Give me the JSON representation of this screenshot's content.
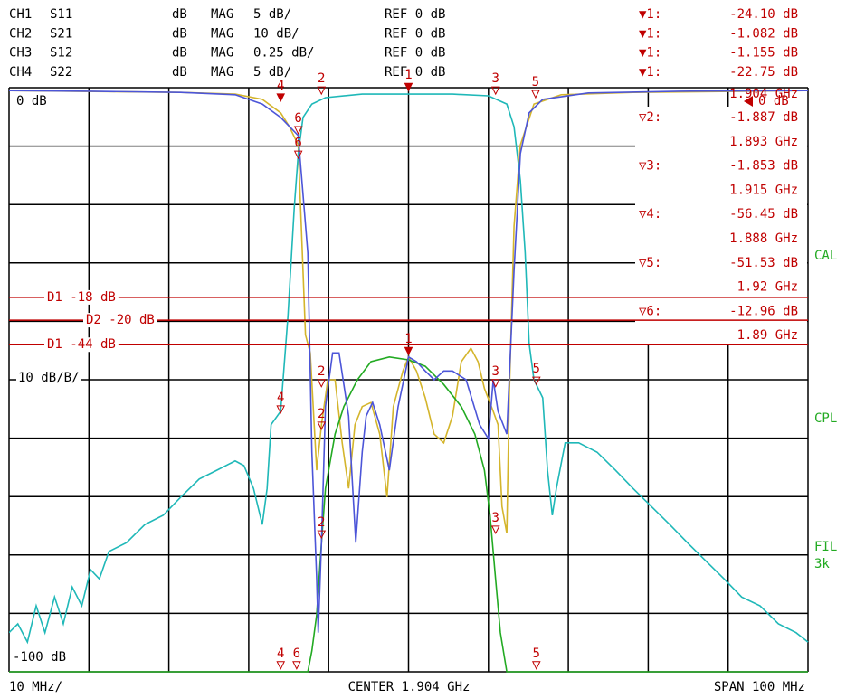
{
  "chart_data": {
    "type": "line",
    "xlim": [
      0,
      10
    ],
    "ylim": [
      0,
      10
    ],
    "grid": {
      "x_divisions": 10,
      "y_divisions": 10
    },
    "series": [
      {
        "channel": "CH1",
        "name": "S11",
        "format": "dB",
        "mode": "MAG",
        "scale": "5 dB/",
        "reference": "REF 0 dB",
        "color": "#d4b52c",
        "x": [
          0,
          2.15,
          2.83,
          3.17,
          3.4,
          3.51,
          3.62,
          3.71,
          3.77,
          3.85,
          3.91,
          3.99,
          4.08,
          4.17,
          4.25,
          4.33,
          4.42,
          4.53,
          4.64,
          4.73,
          4.81,
          4.93,
          5.0,
          5.1,
          5.21,
          5.32,
          5.44,
          5.55,
          5.66,
          5.78,
          5.87,
          5.95,
          6.06,
          6.12,
          6.17,
          6.23,
          6.26,
          6.32,
          6.4,
          6.57,
          6.91,
          7.81,
          10
        ],
        "values": [
          9.95,
          9.92,
          9.89,
          9.8,
          9.57,
          9.33,
          9.02,
          5.77,
          5.46,
          3.45,
          4.23,
          5.0,
          5.0,
          3.92,
          3.14,
          4.23,
          4.54,
          4.61,
          4.07,
          2.99,
          4.54,
          5.15,
          5.39,
          5.15,
          4.69,
          4.07,
          3.92,
          4.38,
          5.31,
          5.54,
          5.31,
          4.85,
          4.46,
          4.23,
          2.83,
          2.37,
          4.69,
          7.63,
          9.02,
          9.72,
          9.88,
          9.92,
          9.95
        ]
      },
      {
        "channel": "CH2",
        "name": "S21",
        "format": "dB",
        "mode": "MAG",
        "scale": "10 dB/",
        "reference": "REF 0 dB",
        "color": "#1fb8b8",
        "x": [
          0,
          0.11,
          0.23,
          0.34,
          0.45,
          0.57,
          0.68,
          0.79,
          0.91,
          1.02,
          1.13,
          1.25,
          1.47,
          1.7,
          1.93,
          2.15,
          2.38,
          2.6,
          2.83,
          2.94,
          3.06,
          3.17,
          3.23,
          3.28,
          3.4,
          3.49,
          3.57,
          3.62,
          3.68,
          3.79,
          3.96,
          4.42,
          5.0,
          5.55,
          6.0,
          6.23,
          6.32,
          6.4,
          6.46,
          6.51,
          6.57,
          6.68,
          6.74,
          6.8,
          6.85,
          6.96,
          7.13,
          7.36,
          7.59,
          7.81,
          8.04,
          8.27,
          8.49,
          8.72,
          8.95,
          9.17,
          9.4,
          9.63,
          9.85,
          10
        ],
        "values": [
          0.67,
          0.82,
          0.51,
          1.13,
          0.67,
          1.28,
          0.82,
          1.45,
          1.13,
          1.75,
          1.59,
          2.06,
          2.21,
          2.52,
          2.68,
          2.99,
          3.3,
          3.45,
          3.61,
          3.53,
          3.14,
          2.52,
          3.14,
          4.23,
          4.46,
          6.08,
          7.94,
          8.87,
          9.49,
          9.72,
          9.83,
          9.89,
          9.89,
          9.89,
          9.86,
          9.72,
          9.33,
          8.41,
          7.17,
          5.62,
          5.0,
          4.69,
          3.45,
          2.68,
          3.14,
          3.92,
          3.92,
          3.76,
          3.45,
          3.14,
          2.83,
          2.52,
          2.21,
          1.9,
          1.59,
          1.28,
          1.13,
          0.82,
          0.67,
          0.51
        ]
      },
      {
        "channel": "CH3",
        "name": "S12",
        "format": "dB",
        "mode": "MAG",
        "scale": "0.25 dB/",
        "reference": "REF 0 dB",
        "color": "#22aa22",
        "x": [
          0,
          3.74,
          3.79,
          3.85,
          3.91,
          3.96,
          4.08,
          4.19,
          4.36,
          4.53,
          4.76,
          5.0,
          5.21,
          5.44,
          5.66,
          5.83,
          5.95,
          6.02,
          6.09,
          6.15,
          6.23,
          10
        ],
        "values": [
          0,
          0,
          0.36,
          0.98,
          2.21,
          3.14,
          4.07,
          4.54,
          5.0,
          5.31,
          5.39,
          5.34,
          5.23,
          4.92,
          4.54,
          4.07,
          3.45,
          2.68,
          1.59,
          0.67,
          0,
          0
        ]
      },
      {
        "channel": "CH4",
        "name": "S22",
        "format": "dB",
        "mode": "MAG",
        "scale": "5 dB/",
        "reference": "REF 0 dB",
        "color": "#4c55d8",
        "x": [
          0,
          1.02,
          2.15,
          2.83,
          3.17,
          3.4,
          3.62,
          3.74,
          3.79,
          3.85,
          3.87,
          3.91,
          3.96,
          4.05,
          4.13,
          4.25,
          4.34,
          4.42,
          4.47,
          4.55,
          4.64,
          4.76,
          4.87,
          5.0,
          5.1,
          5.21,
          5.32,
          5.44,
          5.55,
          5.72,
          5.89,
          6.0,
          6.06,
          6.12,
          6.23,
          6.32,
          6.4,
          6.51,
          6.68,
          7.25,
          8.38,
          10
        ],
        "values": [
          9.95,
          9.94,
          9.92,
          9.88,
          9.72,
          9.49,
          9.18,
          7.17,
          3.76,
          1.59,
          0.67,
          2.21,
          4.54,
          5.46,
          5.46,
          4.38,
          2.21,
          3.76,
          4.38,
          4.61,
          4.23,
          3.45,
          4.54,
          5.39,
          5.31,
          5.15,
          5.0,
          5.15,
          5.15,
          5.0,
          4.23,
          3.99,
          5.0,
          4.46,
          4.07,
          6.87,
          8.87,
          9.57,
          9.8,
          9.91,
          9.94,
          9.95
        ]
      }
    ],
    "markers": [
      {
        "label": "4",
        "x": 3.4,
        "y": 9.77,
        "filled": true
      },
      {
        "label": "2",
        "x": 3.91,
        "y": 9.89,
        "filled": false
      },
      {
        "label": "1",
        "x": 5.0,
        "y": 9.95,
        "filled": true
      },
      {
        "label": "3",
        "x": 6.09,
        "y": 9.89,
        "filled": false
      },
      {
        "label": "5",
        "x": 6.59,
        "y": 9.83,
        "filled": false
      },
      {
        "label": "6",
        "x": 3.62,
        "y": 9.21,
        "filled": false
      },
      {
        "label": "6",
        "x": 3.62,
        "y": 8.79,
        "filled": false
      },
      {
        "label": "1",
        "x": 5.0,
        "y": 5.43,
        "filled": true
      },
      {
        "label": "2",
        "x": 3.91,
        "y": 4.88,
        "filled": false
      },
      {
        "label": "3",
        "x": 6.09,
        "y": 4.88,
        "filled": false
      },
      {
        "label": "5",
        "x": 6.6,
        "y": 4.92,
        "filled": false
      },
      {
        "label": "4",
        "x": 3.4,
        "y": 4.43,
        "filled": false
      },
      {
        "label": "2",
        "x": 3.91,
        "y": 4.15,
        "filled": false
      },
      {
        "label": "2",
        "x": 3.91,
        "y": 2.29,
        "filled": false
      },
      {
        "label": "3",
        "x": 6.09,
        "y": 2.37,
        "filled": false
      },
      {
        "label": "4",
        "x": 3.4,
        "y": 0.05,
        "filled": false
      },
      {
        "label": "6",
        "x": 3.6,
        "y": 0.05,
        "filled": false
      },
      {
        "label": "5",
        "x": 6.6,
        "y": 0.05,
        "filled": false
      }
    ],
    "limit_lines": [
      {
        "label": "D1 -18 dB",
        "y": 6.41
      },
      {
        "label": "D2 -20 dB",
        "y": 6.02
      },
      {
        "label": "D1 -44 dB",
        "y": 5.6
      }
    ],
    "readout": [
      {
        "symbol": "▼1:",
        "value": "-24.10 dB"
      },
      {
        "symbol": "▼1:",
        "value": "-1.082 dB"
      },
      {
        "symbol": "▼1:",
        "value": "-1.155 dB"
      },
      {
        "symbol": "▼1:",
        "value": "-22.75 dB",
        "frequency": "1.904 GHz"
      },
      {
        "symbol": "▽2:",
        "value": "-1.887 dB",
        "frequency": "1.893 GHz"
      },
      {
        "symbol": "▽3:",
        "value": "-1.853 dB",
        "frequency": "1.915 GHz"
      },
      {
        "symbol": "▽4:",
        "value": "-56.45 dB",
        "frequency": "1.888 GHz"
      },
      {
        "symbol": "▽5:",
        "value": "-51.53 dB",
        "frequency": "1.92 GHz"
      },
      {
        "symbol": "▽6:",
        "value": "-12.96 dB",
        "frequency": "1.89 GHz"
      }
    ],
    "ref_marker": "0 dB",
    "plot_labels": {
      "top": "0 dB",
      "middle": "10 dB/B/",
      "bottom": "-100 dB"
    },
    "side_labels": [
      "CAL",
      "CPL",
      "FIL",
      "3k"
    ],
    "footer": {
      "left": "10 MHz/",
      "center": "CENTER 1.904 GHz",
      "right": "SPAN 100 MHz"
    }
  }
}
